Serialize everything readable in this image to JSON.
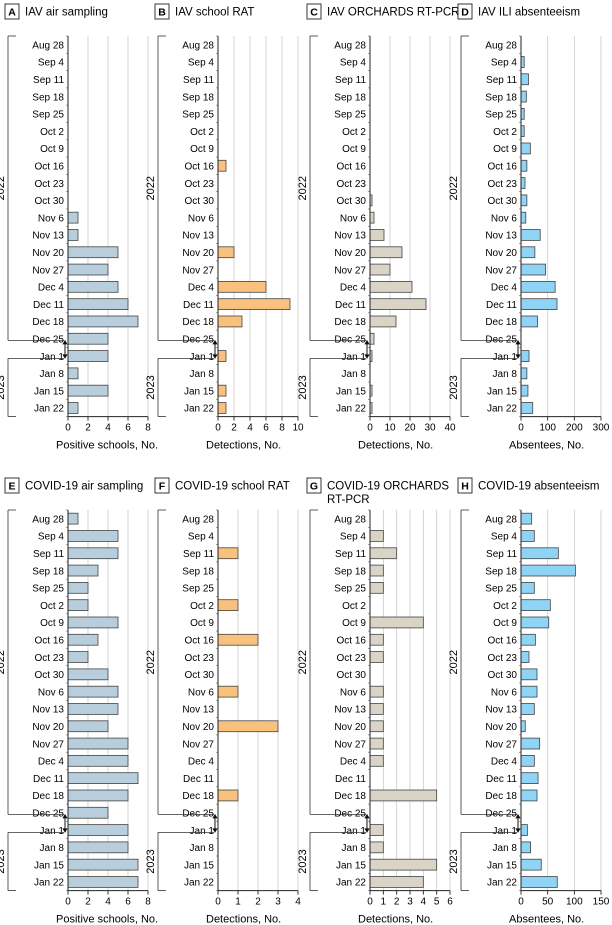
{
  "weeks": [
    "Aug 28",
    "Sep 4",
    "Sep 11",
    "Sep 18",
    "Sep 25",
    "Oct 2",
    "Oct 9",
    "Oct 16",
    "Oct 23",
    "Oct 30",
    "Nov 6",
    "Nov 13",
    "Nov 20",
    "Nov 27",
    "Dec 4",
    "Dec 11",
    "Dec 18",
    "Dec 25",
    "Jan 1",
    "Jan 8",
    "Jan 15",
    "Jan 22"
  ],
  "years": [
    "2022",
    "2023"
  ],
  "colors": {
    "blue_gray": "#b8cedc",
    "orange": "#f8c27e",
    "beige": "#d9d4c6",
    "light_blue": "#8fd4f4",
    "grid": "#c9c9c9",
    "stroke": "#444444"
  },
  "chart_data": [
    {
      "type": "bar",
      "panel": "A",
      "title": "IAV air sampling",
      "xlabel": "Positive schools, No.",
      "xlim": [
        0,
        8
      ],
      "xticks": [
        0,
        2,
        4,
        6,
        8
      ],
      "color": "blue_gray",
      "values": [
        null,
        null,
        null,
        null,
        null,
        null,
        null,
        null,
        null,
        null,
        1,
        1,
        5,
        4,
        5,
        6,
        7,
        4,
        4,
        1,
        4,
        1
      ]
    },
    {
      "type": "bar",
      "panel": "B",
      "title": "IAV school RAT",
      "xlabel": "Detections, No.",
      "xlim": [
        0,
        10
      ],
      "xticks": [
        0,
        2,
        4,
        6,
        8,
        10
      ],
      "color": "orange",
      "values": [
        null,
        null,
        null,
        null,
        null,
        null,
        null,
        1,
        null,
        null,
        null,
        null,
        2,
        null,
        6,
        9,
        3,
        null,
        1,
        null,
        1,
        1
      ]
    },
    {
      "type": "bar",
      "panel": "C",
      "title": "IAV ORCHARDS RT-PCR",
      "xlabel": "Detections, No.",
      "xlim": [
        0,
        40
      ],
      "xticks": [
        0,
        10,
        20,
        30,
        40
      ],
      "color": "beige",
      "values": [
        null,
        null,
        null,
        null,
        null,
        null,
        null,
        null,
        null,
        1,
        2,
        7,
        16,
        10,
        21,
        28,
        13,
        2,
        1,
        null,
        1,
        1
      ]
    },
    {
      "type": "bar",
      "panel": "D",
      "title": "IAV ILI absenteeism",
      "xlabel": "Absentees, No.",
      "xlim": [
        0,
        300
      ],
      "xticks": [
        0,
        100,
        200,
        300
      ],
      "color": "light_blue",
      "values": [
        null,
        12,
        28,
        20,
        12,
        12,
        35,
        22,
        15,
        22,
        18,
        72,
        52,
        92,
        128,
        135,
        62,
        null,
        30,
        22,
        26,
        44
      ]
    },
    {
      "type": "bar",
      "panel": "E",
      "title": "COVID-19 air sampling",
      "xlabel": "Positive schools, No.",
      "xlim": [
        0,
        8
      ],
      "xticks": [
        0,
        2,
        4,
        6,
        8
      ],
      "color": "blue_gray",
      "values": [
        1,
        5,
        5,
        3,
        2,
        2,
        5,
        3,
        2,
        4,
        5,
        5,
        4,
        6,
        6,
        7,
        6,
        4,
        6,
        6,
        7,
        7
      ]
    },
    {
      "type": "bar",
      "panel": "F",
      "title": "COVID-19 school RAT",
      "xlabel": "Detections, No.",
      "xlim": [
        0,
        4
      ],
      "xticks": [
        0,
        1,
        2,
        3,
        4
      ],
      "color": "orange",
      "values": [
        null,
        null,
        1,
        null,
        null,
        1,
        null,
        2,
        null,
        null,
        1,
        null,
        3,
        null,
        null,
        null,
        1,
        null,
        null,
        null,
        null,
        null
      ]
    },
    {
      "type": "bar",
      "panel": "G",
      "title": "COVID-19 ORCHARDS RT-PCR",
      "xlabel": "Detections, No.",
      "xlim": [
        0,
        6
      ],
      "xticks": [
        0,
        1,
        2,
        3,
        4,
        5,
        6
      ],
      "color": "beige",
      "values": [
        null,
        1,
        2,
        1,
        1,
        null,
        4,
        1,
        1,
        null,
        1,
        1,
        1,
        1,
        1,
        null,
        5,
        null,
        1,
        1,
        5,
        4
      ]
    },
    {
      "type": "bar",
      "panel": "H",
      "title": "COVID-19 absenteeism",
      "xlabel": "Absentees, No.",
      "xlim": [
        0,
        150
      ],
      "xticks": [
        0,
        50,
        100,
        150
      ],
      "color": "light_blue",
      "values": [
        20,
        25,
        70,
        102,
        25,
        55,
        52,
        27,
        15,
        30,
        30,
        25,
        8,
        35,
        25,
        32,
        30,
        null,
        12,
        18,
        38,
        68
      ]
    }
  ]
}
